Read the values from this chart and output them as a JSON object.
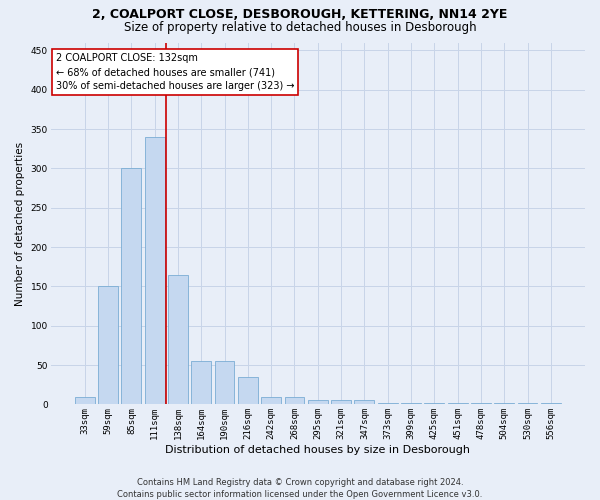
{
  "title1": "2, COALPORT CLOSE, DESBOROUGH, KETTERING, NN14 2YE",
  "title2": "Size of property relative to detached houses in Desborough",
  "xlabel": "Distribution of detached houses by size in Desborough",
  "ylabel": "Number of detached properties",
  "footnote1": "Contains HM Land Registry data © Crown copyright and database right 2024.",
  "footnote2": "Contains public sector information licensed under the Open Government Licence v3.0.",
  "bin_labels": [
    "33sqm",
    "59sqm",
    "85sqm",
    "111sqm",
    "138sqm",
    "164sqm",
    "190sqm",
    "216sqm",
    "242sqm",
    "268sqm",
    "295sqm",
    "321sqm",
    "347sqm",
    "373sqm",
    "399sqm",
    "425sqm",
    "451sqm",
    "478sqm",
    "504sqm",
    "530sqm",
    "556sqm"
  ],
  "bar_values": [
    10,
    150,
    300,
    340,
    165,
    55,
    55,
    35,
    10,
    10,
    5,
    5,
    5,
    2,
    2,
    2,
    2,
    2,
    2,
    2,
    2
  ],
  "bar_color": "#c5d8f0",
  "bar_edgecolor": "#7aadd4",
  "vline_color": "#cc0000",
  "annotation_text": "2 COALPORT CLOSE: 132sqm\n← 68% of detached houses are smaller (741)\n30% of semi-detached houses are larger (323) →",
  "annotation_box_facecolor": "#ffffff",
  "annotation_box_edgecolor": "#cc0000",
  "ylim": [
    0,
    460
  ],
  "yticks": [
    0,
    50,
    100,
    150,
    200,
    250,
    300,
    350,
    400,
    450
  ],
  "grid_color": "#c8d4e8",
  "background_color": "#e8eef8",
  "plot_background": "#e8eef8",
  "title1_fontsize": 9,
  "title2_fontsize": 8.5,
  "xlabel_fontsize": 8,
  "ylabel_fontsize": 7.5,
  "tick_fontsize": 6.5,
  "annotation_fontsize": 7,
  "footnote_fontsize": 6
}
